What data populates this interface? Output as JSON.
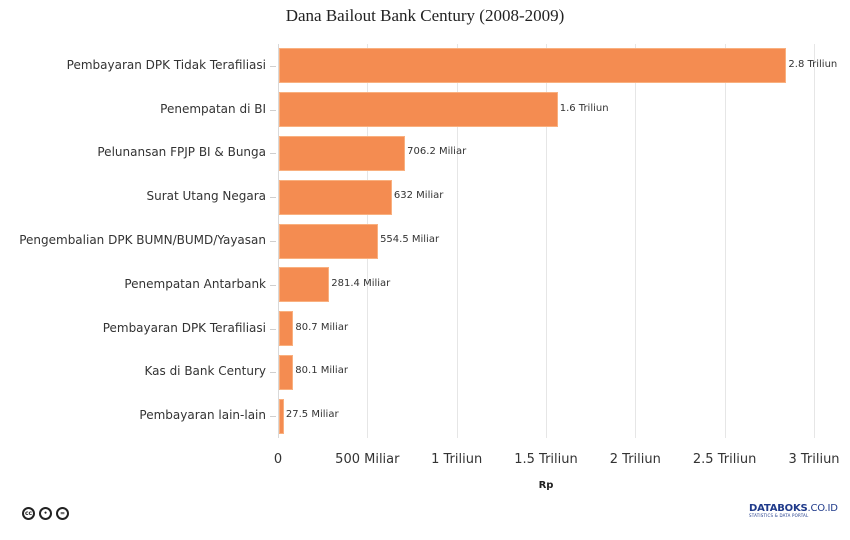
{
  "chart_data": {
    "type": "bar",
    "orientation": "horizontal",
    "title": "Dana Bailout Bank Century (2008-2009)",
    "xlabel": "Rp",
    "ylabel": "",
    "categories": [
      "Pembayaran DPK Tidak Terafiliasi",
      "Penempatan di BI",
      "Pelunansan FPJP BI & Bunga",
      "Surat Utang Negara",
      "Pengembalian DPK BUMN/BUMD/Yayasan",
      "Penempatan Antarbank",
      "Pembayaran DPK Terafiliasi",
      "Kas di Bank Century",
      "Pembayaran lain-lain"
    ],
    "values": [
      2840,
      1560,
      706.2,
      632,
      554.5,
      281.4,
      80.7,
      80.1,
      27.5
    ],
    "value_unit": "Miliar Rp",
    "data_labels": [
      "2.8 Triliun",
      "1.6 Triliun",
      "706.2 Miliar",
      "632 Miliar",
      "554.5 Miliar",
      "281.4 Miliar",
      "80.7 Miliar",
      "80.1 Miliar",
      "27.5 Miliar"
    ],
    "xlim": [
      0,
      3000
    ],
    "x_ticks": [
      0,
      500,
      1000,
      1500,
      2000,
      2500,
      3000
    ],
    "x_tick_labels": [
      "0",
      "500 Miliar",
      "1 Triliun",
      "1.5 Triliun",
      "2 Triliun",
      "2.5 Triliun",
      "3 Triliun"
    ],
    "grid": true,
    "legend": null,
    "bar_color": "#f48c51"
  },
  "footer": {
    "license_icons": [
      "cc-icon",
      "by-icon",
      "nd-icon"
    ],
    "license_glyphs": [
      "cc",
      "•",
      "="
    ],
    "brand_main": "DATABOKS",
    "brand_domain": ".CO.ID",
    "brand_sub": "STATISTICS & DATA PORTAL"
  }
}
